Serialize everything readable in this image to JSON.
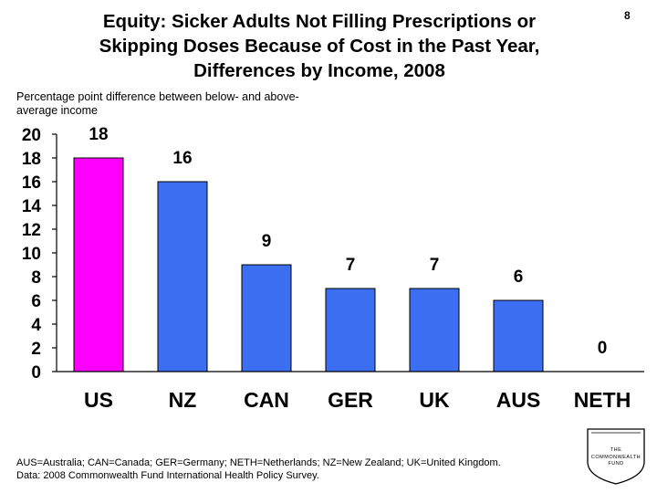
{
  "slide": {
    "title_lines": [
      "Equity: Sicker Adults Not Filling Prescriptions or",
      "Skipping Doses Because of Cost in the Past Year,",
      "Differences by Income, 2008"
    ],
    "slide_number": "8",
    "footnote_lines": [
      "AUS=Australia; CAN=Canada; GER=Germany; NETH=Netherlands; NZ=New Zealand; UK=United Kingdom.",
      "Data: 2008 Commonwealth Fund International Health Policy Survey."
    ],
    "logo_lines": [
      "THE",
      "COMMONWEALTH",
      "FUND"
    ]
  },
  "chart_data": {
    "type": "bar",
    "title": "Equity: Sicker Adults Not Filling Prescriptions or Skipping Doses Because of Cost in the Past Year, Differences by Income, 2008",
    "ylabel": "Percentage point difference between below- and above-average income",
    "xlabel": "",
    "categories": [
      "US",
      "NZ",
      "CAN",
      "GER",
      "UK",
      "AUS",
      "NETH"
    ],
    "values": [
      18,
      16,
      9,
      7,
      7,
      6,
      0
    ],
    "value_labels": [
      "18",
      "16",
      "9",
      "7",
      "7",
      "6",
      "0"
    ],
    "ylim": [
      0,
      20
    ],
    "yticks": [
      "0",
      "2",
      "4",
      "6",
      "8",
      "10",
      "12",
      "14",
      "16",
      "18",
      "20"
    ],
    "grid": false,
    "colors": {
      "highlight": "#ff00ff",
      "default": "#3b6ef0",
      "axis": "#000000"
    }
  }
}
